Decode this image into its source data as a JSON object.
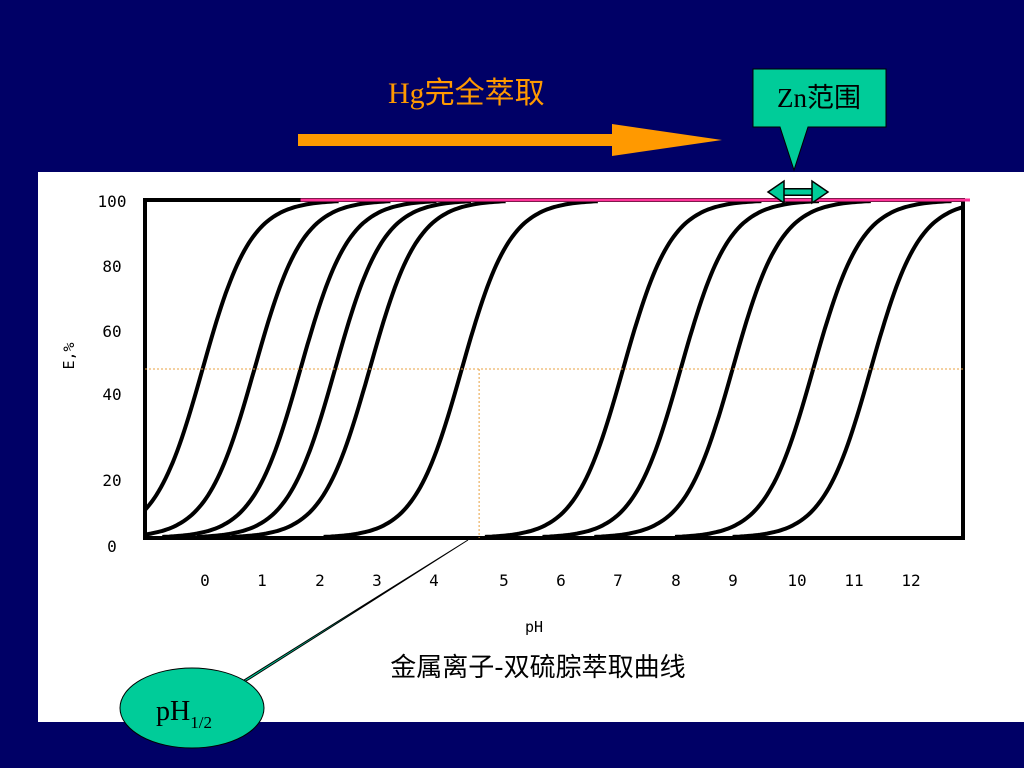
{
  "slide": {
    "background": "#000066",
    "hg_label": "Hg完全萃取",
    "hg_arrow_color": "#ff9900",
    "zn_callout": {
      "text": "Zn范围",
      "color": "#00cc99"
    },
    "ph_half_callout": {
      "main": "pH",
      "sub": "1/2",
      "color": "#00cc99"
    }
  },
  "chart_data": {
    "type": "line",
    "title": "金属离子-双硫腙萃取曲线",
    "xlabel": "pH",
    "ylabel": "E,%",
    "xlim": [
      -1,
      13.2
    ],
    "ylim": [
      0,
      100
    ],
    "x_ticks": [
      "0",
      "1",
      "2",
      "3",
      "4",
      "5",
      "6",
      "7",
      "8",
      "9",
      "10",
      "11",
      "12"
    ],
    "y_ticks": [
      "0",
      "20",
      "40",
      "60",
      "80",
      "100"
    ],
    "grid": false,
    "series": [
      {
        "pH_half": 0.0
      },
      {
        "pH_half": 0.9
      },
      {
        "pH_half": 1.7
      },
      {
        "pH_half": 2.3
      },
      {
        "pH_half": 2.9
      },
      {
        "pH_half": 4.5
      },
      {
        "pH_half": 7.3
      },
      {
        "pH_half": 8.3
      },
      {
        "pH_half": 9.2
      },
      {
        "pH_half": 10.6
      },
      {
        "pH_half": 11.6
      }
    ],
    "reference_lines": {
      "complete_extraction": {
        "y": 100,
        "color": "#ff3399"
      },
      "half_extraction": {
        "y": 50,
        "color": "#e8a040"
      },
      "pH_half_marker": {
        "x": 4.8,
        "color": "#e8a040"
      }
    },
    "zn_range": [
      10.0,
      11.1
    ]
  }
}
